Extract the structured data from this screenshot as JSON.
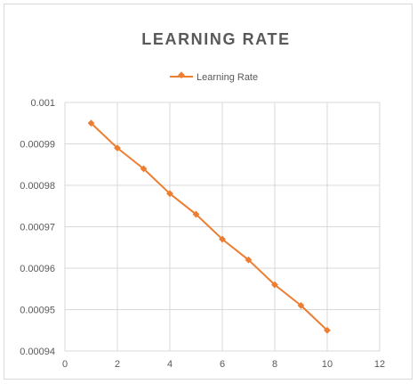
{
  "chart_data": {
    "type": "line",
    "title": "LEARNING RATE",
    "xlabel": "",
    "ylabel": "",
    "xlim": [
      0,
      12
    ],
    "ylim": [
      0.00094,
      0.001
    ],
    "x_ticks": [
      0,
      2,
      4,
      6,
      8,
      10,
      12
    ],
    "y_ticks": [
      0.00094,
      0.00095,
      0.00096,
      0.00097,
      0.00098,
      0.00099,
      0.001
    ],
    "x_tick_labels": [
      "0",
      "2",
      "4",
      "6",
      "8",
      "10",
      "12"
    ],
    "y_tick_labels": [
      "0.00094",
      "0.00095",
      "0.00096",
      "0.00097",
      "0.00098",
      "0.00099",
      "0.001"
    ],
    "grid": true,
    "legend_position": "top",
    "series": [
      {
        "name": "Learning Rate",
        "color": "#ed7d31",
        "marker": "diamond",
        "x": [
          1,
          2,
          3,
          4,
          5,
          6,
          7,
          8,
          9,
          10
        ],
        "y": [
          0.000995,
          0.000989,
          0.000984,
          0.000978,
          0.000973,
          0.000967,
          0.000962,
          0.000956,
          0.000951,
          0.000945
        ]
      }
    ]
  }
}
